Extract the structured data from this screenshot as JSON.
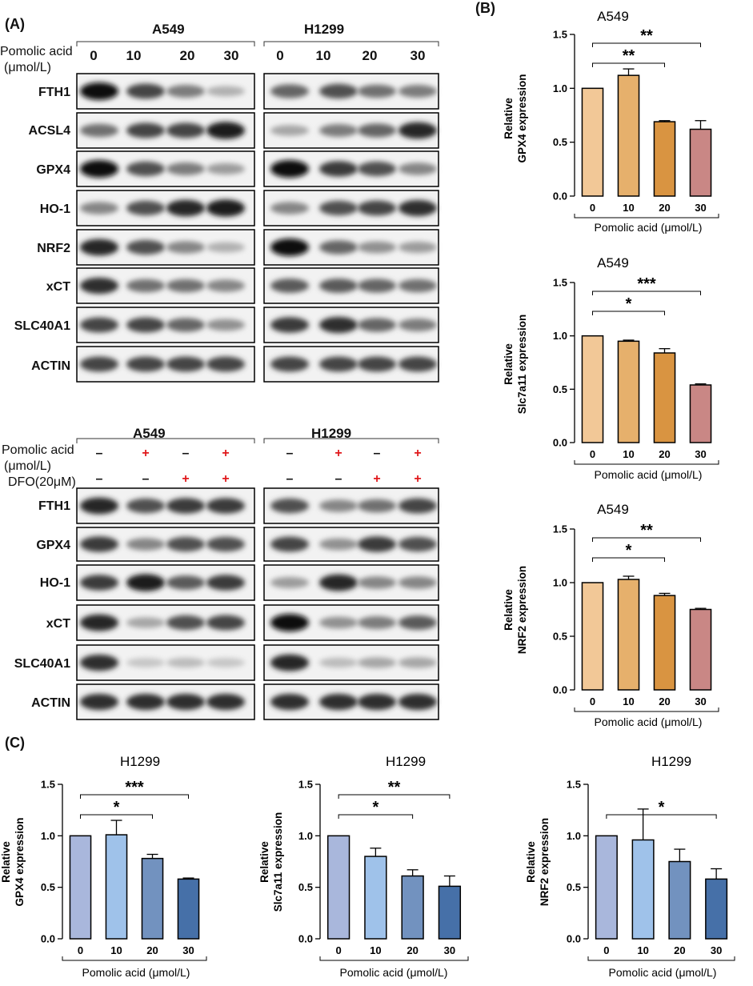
{
  "panels": {
    "a": "(A)",
    "b": "(B)",
    "c": "(C)"
  },
  "blot_top": {
    "cells": [
      "A549",
      "H1299"
    ],
    "treatment_label": [
      "Pomolic acid",
      "(μmol/L)"
    ],
    "doses": [
      "0",
      "10",
      "20",
      "30"
    ],
    "rows": [
      "FTH1",
      "ACSL4",
      "GPX4",
      "HO-1",
      "NRF2",
      "xCT",
      "SLC40A1",
      "ACTIN"
    ]
  },
  "blot_bottom": {
    "cells": [
      "A549",
      "H1299"
    ],
    "treatment_label": [
      "Pomolic acid",
      "(μmol/L)"
    ],
    "dfo_label": "DFO(20μM)",
    "pomolic_signs": [
      "–",
      "+",
      "–",
      "+"
    ],
    "dfo_signs": [
      "–",
      "–",
      "+",
      "+"
    ],
    "rows": [
      "FTH1",
      "GPX4",
      "HO-1",
      "xCT",
      "SLC40A1",
      "ACTIN"
    ]
  },
  "colors": {
    "a549_bars": [
      "#f2c897",
      "#e6b06c",
      "#d99441",
      "#c98785"
    ],
    "h1299_bars": [
      "#a9b7dc",
      "#9fc2ea",
      "#7292bf",
      "#4670a8"
    ],
    "minus_sign": "#111111",
    "plus_sign": "#e0181b"
  },
  "chart_data": [
    {
      "type": "bar",
      "title": "A549",
      "categories": [
        "0",
        "10",
        "20",
        "30"
      ],
      "values": [
        1.0,
        1.12,
        0.69,
        0.62
      ],
      "errors": [
        0.0,
        0.06,
        0.01,
        0.08
      ],
      "xlabel": "Pomolic acid (μmol/L)",
      "ylabel": [
        "Relative",
        "GPX4 expression"
      ],
      "ylim": [
        0,
        1.5
      ],
      "yticks": [
        "0.0",
        "0.5",
        "1.0",
        "1.5"
      ],
      "significance": [
        {
          "from": 0,
          "to": 2,
          "label": "**"
        },
        {
          "from": 0,
          "to": 3,
          "label": "**"
        }
      ]
    },
    {
      "type": "bar",
      "title": "A549",
      "categories": [
        "0",
        "10",
        "20",
        "30"
      ],
      "values": [
        1.0,
        0.95,
        0.84,
        0.54
      ],
      "errors": [
        0.0,
        0.01,
        0.04,
        0.01
      ],
      "xlabel": "Pomolic acid (μmol/L)",
      "ylabel": [
        "Relative",
        "Slc7a11 expression"
      ],
      "ylim": [
        0,
        1.5
      ],
      "yticks": [
        "0.0",
        "0.5",
        "1.0",
        "1.5"
      ],
      "significance": [
        {
          "from": 0,
          "to": 2,
          "label": "*"
        },
        {
          "from": 0,
          "to": 3,
          "label": "***"
        }
      ]
    },
    {
      "type": "bar",
      "title": "A549",
      "categories": [
        "0",
        "10",
        "20",
        "30"
      ],
      "values": [
        1.0,
        1.03,
        0.88,
        0.75
      ],
      "errors": [
        0.0,
        0.03,
        0.02,
        0.01
      ],
      "xlabel": "Pomolic acid (μmol/L)",
      "ylabel": [
        "Relative",
        "NRF2 expression"
      ],
      "ylim": [
        0,
        1.5
      ],
      "yticks": [
        "0.0",
        "0.5",
        "1.0",
        "1.5"
      ],
      "significance": [
        {
          "from": 0,
          "to": 2,
          "label": "*"
        },
        {
          "from": 0,
          "to": 3,
          "label": "**"
        }
      ]
    },
    {
      "type": "bar",
      "title": "H1299",
      "categories": [
        "0",
        "10",
        "20",
        "30"
      ],
      "values": [
        1.0,
        1.01,
        0.78,
        0.58
      ],
      "errors": [
        0.0,
        0.14,
        0.04,
        0.01
      ],
      "xlabel": "Pomolic acid (μmol/L)",
      "ylabel": [
        "Relative",
        "GPX4 expression"
      ],
      "ylim": [
        0,
        1.5
      ],
      "yticks": [
        "0.0",
        "0.5",
        "1.0",
        "1.5"
      ],
      "significance": [
        {
          "from": 0,
          "to": 2,
          "label": "*"
        },
        {
          "from": 0,
          "to": 3,
          "label": "***"
        }
      ]
    },
    {
      "type": "bar",
      "title": "H1299",
      "categories": [
        "0",
        "10",
        "20",
        "30"
      ],
      "values": [
        1.0,
        0.8,
        0.61,
        0.51
      ],
      "errors": [
        0.0,
        0.08,
        0.06,
        0.1
      ],
      "xlabel": "Pomolic acid (μmol/L)",
      "ylabel": [
        "Relative",
        "Slc7a11 expression"
      ],
      "ylim": [
        0,
        1.5
      ],
      "yticks": [
        "0.0",
        "0.5",
        "1.0",
        "1.5"
      ],
      "significance": [
        {
          "from": 0,
          "to": 2,
          "label": "*"
        },
        {
          "from": 0,
          "to": 3,
          "label": "**"
        }
      ]
    },
    {
      "type": "bar",
      "title": "H1299",
      "categories": [
        "0",
        "10",
        "20",
        "30"
      ],
      "values": [
        1.0,
        0.96,
        0.75,
        0.58
      ],
      "errors": [
        0.0,
        0.3,
        0.12,
        0.1
      ],
      "xlabel": "Pomolic acid (μmol/L)",
      "ylabel": [
        "Relative",
        "NRF2 expression"
      ],
      "ylim": [
        0,
        1.5
      ],
      "yticks": [
        "0.0",
        "0.5",
        "1.0",
        "1.5"
      ],
      "significance": [
        {
          "from": 0,
          "to": 3,
          "label": "*"
        }
      ]
    }
  ]
}
